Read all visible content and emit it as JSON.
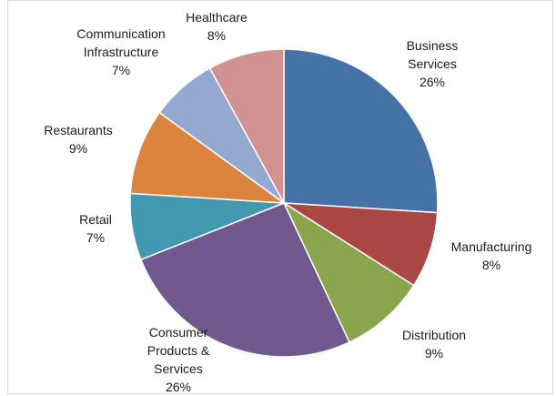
{
  "chart_data": {
    "type": "pie",
    "title": "",
    "start_angle_deg": 0,
    "direction": "clockwise",
    "slices": [
      {
        "label_lines": [
          "Business",
          "Services",
          "26%"
        ],
        "name": "Business Services",
        "value": 26,
        "color": "#4572A7"
      },
      {
        "label_lines": [
          "Manufacturing",
          "8%"
        ],
        "name": "Manufacturing",
        "value": 8,
        "color": "#AA4643"
      },
      {
        "label_lines": [
          "Distribution",
          "9%"
        ],
        "name": "Distribution",
        "value": 9,
        "color": "#89A54E"
      },
      {
        "label_lines": [
          "Consumer",
          "Products &",
          "Services",
          "26%"
        ],
        "name": "Consumer Products & Services",
        "value": 26,
        "color": "#71588F"
      },
      {
        "label_lines": [
          "Retail",
          "7%"
        ],
        "name": "Retail",
        "value": 7,
        "color": "#4198AF"
      },
      {
        "label_lines": [
          "Restaurants",
          "9%"
        ],
        "name": "Restaurants",
        "value": 9,
        "color": "#DB843D"
      },
      {
        "label_lines": [
          "Communication",
          "Infrastructure",
          "7%"
        ],
        "name": "Communication Infrastructure",
        "value": 7,
        "color": "#93A9CF"
      },
      {
        "label_lines": [
          "Healthcare",
          "8%"
        ],
        "name": "Healthcare",
        "value": 8,
        "color": "#D19392"
      }
    ]
  }
}
